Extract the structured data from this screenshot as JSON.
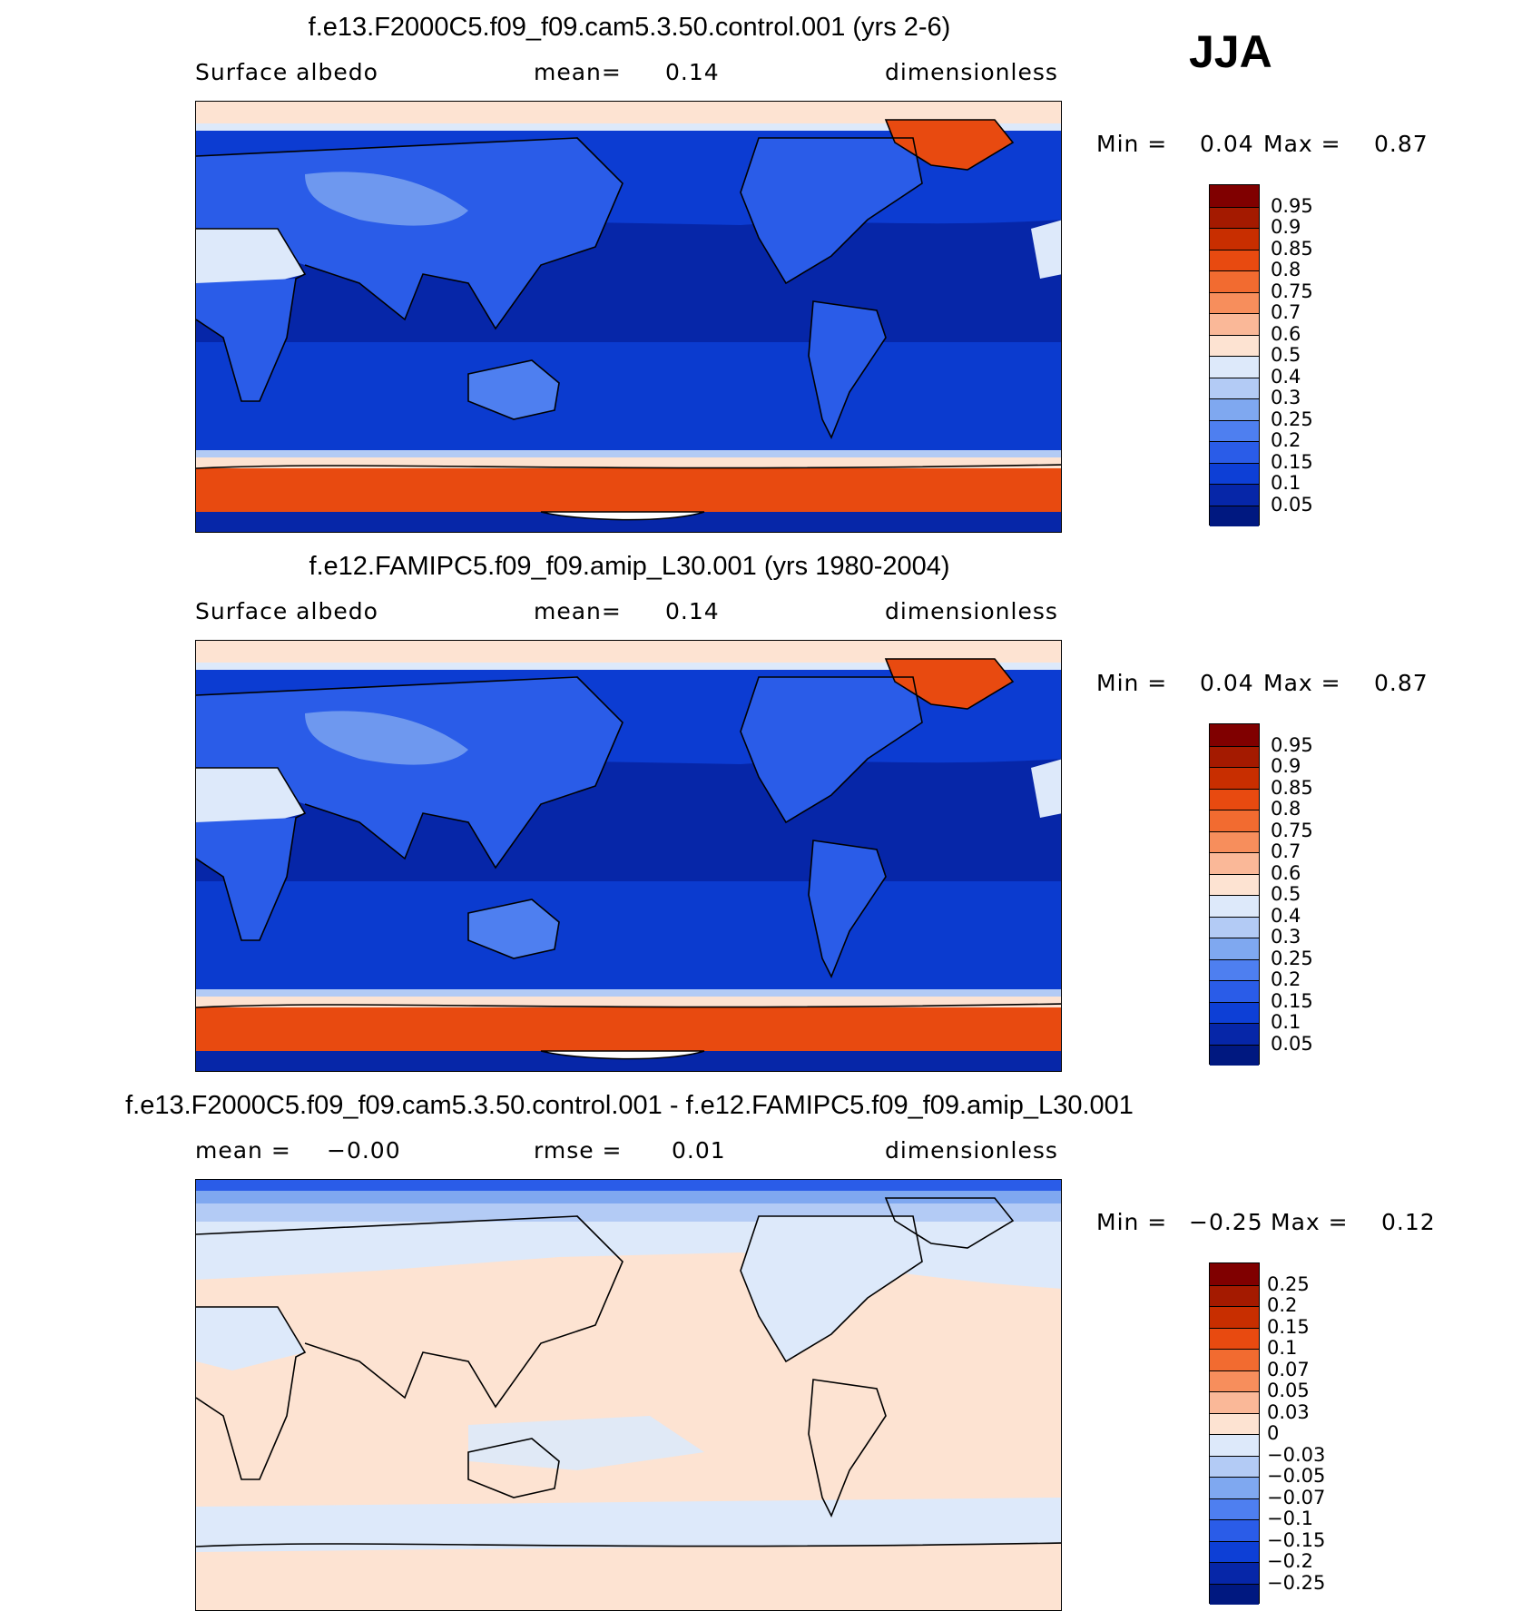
{
  "season": "JJA",
  "panels": [
    {
      "id": "p1",
      "title": "f.e13.F2000C5.f09_f09.cam5.3.50.control.001 (yrs 2-6)",
      "left_label": "Surface albedo",
      "center_label": "mean=",
      "center_value": "0.14",
      "right_label": "dimensionless",
      "min_label": "Min =",
      "min_value": "0.04",
      "max_label": "Max =",
      "max_value": "0.87",
      "colorbar": {
        "labels": [
          "0.95",
          "0.9",
          "0.85",
          "0.8",
          "0.75",
          "0.7",
          "0.6",
          "0.5",
          "0.4",
          "0.3",
          "0.25",
          "0.2",
          "0.15",
          "0.1",
          "0.05"
        ],
        "colors": [
          "#800000",
          "#a41a00",
          "#c82e00",
          "#e84a10",
          "#f26b30",
          "#f78e5c",
          "#fab898",
          "#fde3d2",
          "#dde9fa",
          "#b3cbf5",
          "#7fa8f0",
          "#4e7ff0",
          "#2a5ce8",
          "#0d3fd6",
          "#0626a8",
          "#001880"
        ]
      }
    },
    {
      "id": "p2",
      "title": "f.e12.FAMIPC5.f09_f09.amip_L30.001 (yrs 1980-2004)",
      "left_label": "Surface albedo",
      "center_label": "mean=",
      "center_value": "0.14",
      "right_label": "dimensionless",
      "min_label": "Min =",
      "min_value": "0.04",
      "max_label": "Max =",
      "max_value": "0.87",
      "colorbar": {
        "labels": [
          "0.95",
          "0.9",
          "0.85",
          "0.8",
          "0.75",
          "0.7",
          "0.6",
          "0.5",
          "0.4",
          "0.3",
          "0.25",
          "0.2",
          "0.15",
          "0.1",
          "0.05"
        ],
        "colors": [
          "#800000",
          "#a41a00",
          "#c82e00",
          "#e84a10",
          "#f26b30",
          "#f78e5c",
          "#fab898",
          "#fde3d2",
          "#dde9fa",
          "#b3cbf5",
          "#7fa8f0",
          "#4e7ff0",
          "#2a5ce8",
          "#0d3fd6",
          "#0626a8",
          "#001880"
        ]
      }
    },
    {
      "id": "p3",
      "title": "f.e13.F2000C5.f09_f09.cam5.3.50.control.001 - f.e12.FAMIPC5.f09_f09.amip_L30.001",
      "left_label": "mean =",
      "left_value": "−0.00",
      "center_label": "rmse =",
      "center_value": "0.01",
      "right_label": "dimensionless",
      "min_label": "Min =",
      "min_value": "−0.25",
      "max_label": "Max =",
      "max_value": "0.12",
      "colorbar": {
        "labels": [
          "0.25",
          "0.2",
          "0.15",
          "0.1",
          "0.07",
          "0.05",
          "0.03",
          "0",
          "−0.03",
          "−0.05",
          "−0.07",
          "−0.1",
          "−0.15",
          "−0.2",
          "−0.25"
        ],
        "colors": [
          "#800000",
          "#a41a00",
          "#c82e00",
          "#e84a10",
          "#f26b30",
          "#f78e5c",
          "#fab898",
          "#fde3d2",
          "#dde9fa",
          "#b3cbf5",
          "#7fa8f0",
          "#4e7ff0",
          "#2a5ce8",
          "#0d3fd6",
          "#0626a8",
          "#001880"
        ]
      }
    }
  ]
}
